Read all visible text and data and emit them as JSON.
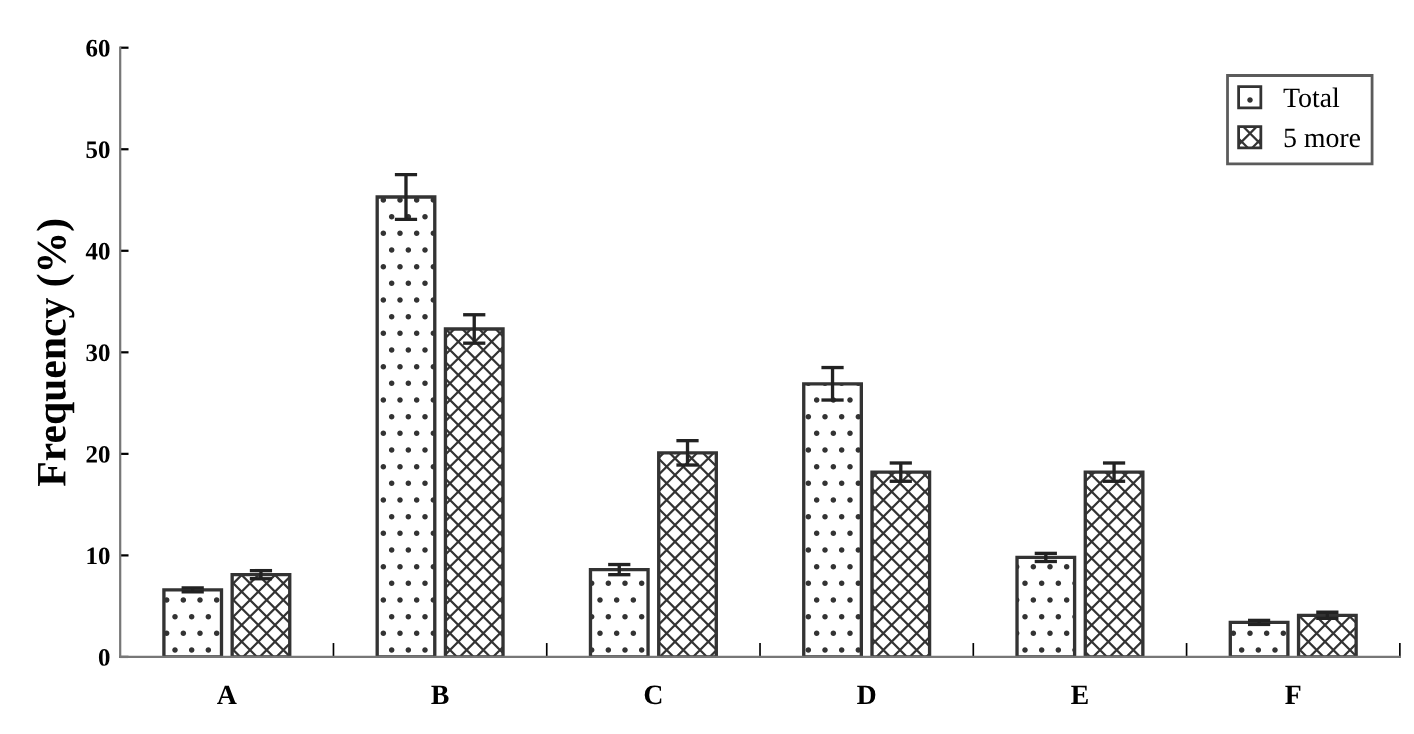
{
  "chart_data": {
    "type": "bar",
    "ylabel": "Frequency (%)",
    "categories": [
      "A",
      "B",
      "C",
      "D",
      "E",
      "F"
    ],
    "series": [
      {
        "name": "Total",
        "color": "#333333",
        "values": [
          6.6,
          45.3,
          8.6,
          26.9,
          9.8,
          3.4
        ],
        "errors": [
          0.2,
          2.2,
          0.5,
          1.6,
          0.4,
          0.2
        ]
      },
      {
        "name": "5 more",
        "color": "#333333",
        "values": [
          8.1,
          32.3,
          20.1,
          18.2,
          18.2,
          4.1
        ],
        "errors": [
          0.4,
          1.4,
          1.2,
          0.9,
          0.9,
          0.3
        ]
      }
    ],
    "ylim": [
      0,
      60
    ],
    "yticks": [
      0,
      10,
      20,
      30,
      40,
      50,
      60
    ],
    "grid": false,
    "legend": "top right"
  }
}
